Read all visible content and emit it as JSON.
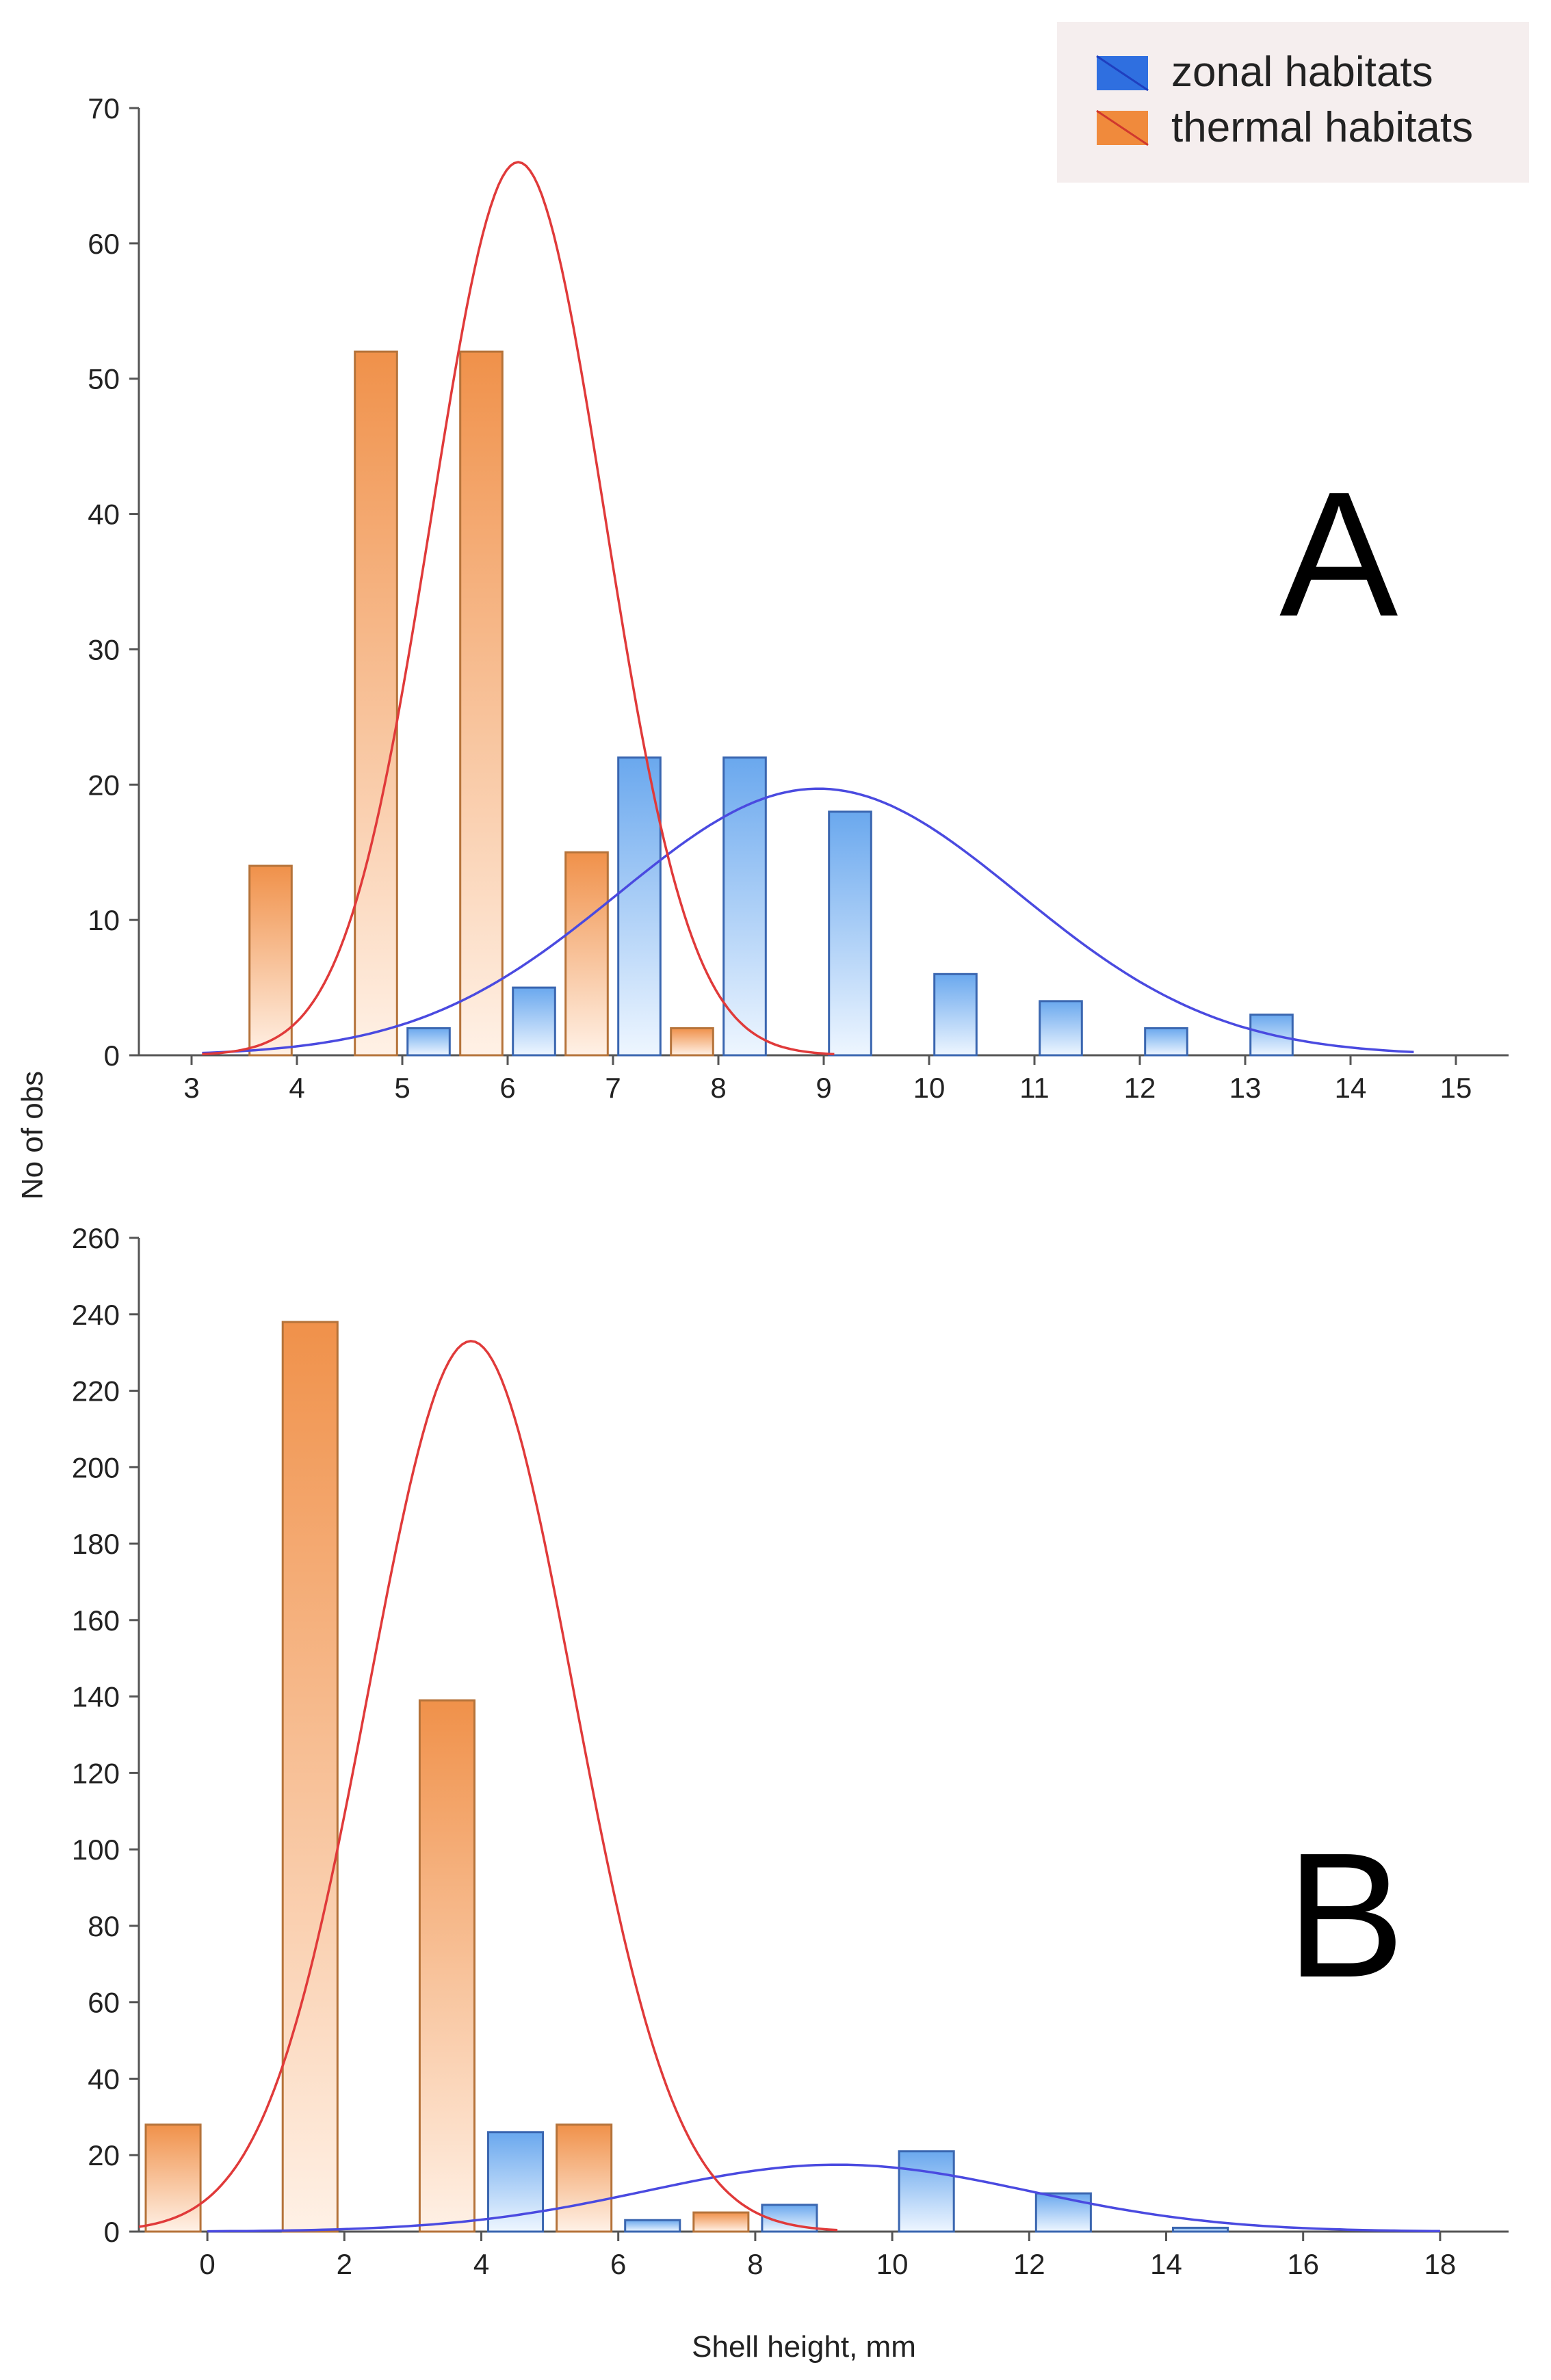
{
  "figure": {
    "ylabel": "No of obs",
    "xlabel": "Shell height, mm"
  },
  "legend": [
    {
      "label": "zonal habitats",
      "color": "#2f6fe0",
      "line": "#1f3fbf"
    },
    {
      "label": "thermal habitats",
      "color": "#f08a3c",
      "line": "#d0382e"
    }
  ],
  "colors": {
    "zonal_fill_top": "#6aa8ee",
    "zonal_fill_bottom": "#eef6ff",
    "zonal_stroke": "#3a66b0",
    "zonal_curve": "#4a4ae0",
    "thermal_fill_top": "#f0914a",
    "thermal_fill_bottom": "#fff1e6",
    "thermal_stroke": "#b5733a",
    "thermal_curve": "#e03a3a",
    "legend_bg": "#f5eeee"
  },
  "chart_data": [
    {
      "type": "bar",
      "panel": "A",
      "xlim": [
        2.5,
        15.5
      ],
      "ylim": [
        0,
        70
      ],
      "xticks": [
        3,
        4,
        5,
        6,
        7,
        8,
        9,
        10,
        11,
        12,
        13,
        14,
        15
      ],
      "yticks": [
        0,
        10,
        20,
        30,
        40,
        50,
        60,
        70
      ],
      "bin_width": 1,
      "series": [
        {
          "name": "zonal habitats",
          "bins": [
            5,
            6,
            7,
            8,
            9,
            10,
            11,
            12,
            13
          ],
          "values": [
            2,
            5,
            22,
            22,
            18,
            6,
            4,
            2,
            3
          ],
          "curve": {
            "mean": 8.95,
            "sd": 1.9,
            "peak": 19.7,
            "range": [
              3.1,
              14.6
            ]
          }
        },
        {
          "name": "thermal habitats",
          "bins": [
            4,
            5,
            6,
            7,
            8
          ],
          "values": [
            14,
            52,
            52,
            15,
            2
          ],
          "curve": {
            "mean": 6.1,
            "sd": 0.82,
            "peak": 66,
            "range": [
              3.1,
              9.1
            ]
          }
        }
      ]
    },
    {
      "type": "bar",
      "panel": "B",
      "xlim": [
        -1,
        19
      ],
      "ylim": [
        0,
        260
      ],
      "xticks": [
        0,
        2,
        4,
        6,
        8,
        10,
        12,
        14,
        16,
        18
      ],
      "yticks": [
        0,
        20,
        40,
        60,
        80,
        100,
        120,
        140,
        160,
        180,
        200,
        220,
        240,
        260
      ],
      "bin_width": 2,
      "series": [
        {
          "name": "zonal habitats",
          "bins": [
            4,
            6,
            8,
            10,
            12,
            14
          ],
          "values": [
            26,
            3,
            7,
            21,
            10,
            1
          ],
          "curve": {
            "mean": 9.2,
            "sd": 2.8,
            "peak": 17.5,
            "range": [
              0,
              18
            ]
          }
        },
        {
          "name": "thermal habitats",
          "bins": [
            0,
            2,
            4,
            6,
            8
          ],
          "values": [
            28,
            238,
            139,
            28,
            5
          ],
          "curve": {
            "mean": 3.85,
            "sd": 1.5,
            "peak": 233,
            "range": [
              -1,
              9.2
            ]
          }
        }
      ]
    }
  ]
}
